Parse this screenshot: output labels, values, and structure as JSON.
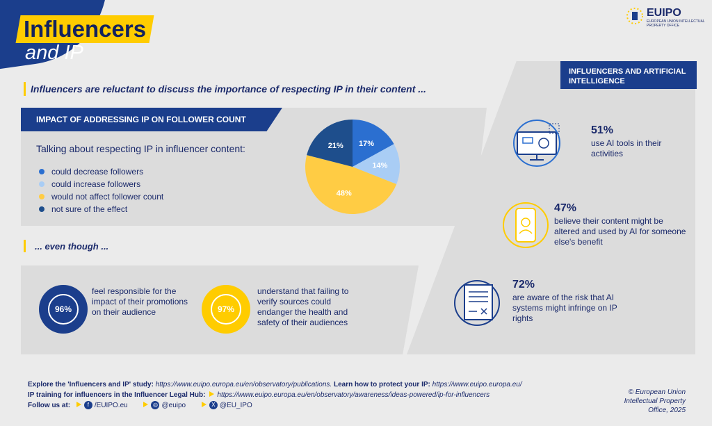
{
  "header": {
    "title": "Influencers",
    "subtitle": "and IP",
    "logo_text": "EUIPO",
    "logo_subtext": "European Union Intellectual Property Office"
  },
  "headline": "Influencers are reluctant to discuss the importance of respecting IP in their content ...",
  "impact": {
    "heading": "IMPACT OF ADDRESSING IP ON FOLLOWER COUNT",
    "question": "Talking about respecting IP in influencer content:",
    "legend": [
      {
        "label": "could decrease followers",
        "color": "#2b6fd0"
      },
      {
        "label": "could increase followers",
        "color": "#a9cdf5"
      },
      {
        "label": "would not affect follower count",
        "color": "#ffcc44"
      },
      {
        "label": "not sure of the effect",
        "color": "#1e4e8c"
      }
    ]
  },
  "chart_data": {
    "type": "pie",
    "categories": [
      "could decrease followers",
      "could increase followers",
      "would not affect follower count",
      "not sure of the effect"
    ],
    "values": [
      17,
      14,
      48,
      21
    ],
    "labels": [
      "17%",
      "14%",
      "48%",
      "21%"
    ],
    "colors": [
      "#2b6fd0",
      "#a9cdf5",
      "#ffcc44",
      "#1e4e8c"
    ],
    "title": "IMPACT OF ADDRESSING IP ON FOLLOWER COUNT"
  },
  "even_though": "... even though ...",
  "rings": [
    {
      "pct": "96%",
      "text": "feel responsible for the impact of their promotions on their audience"
    },
    {
      "pct": "97%",
      "text": "understand that failing to verify sources could endanger the health and safety of their audiences"
    }
  ],
  "ai": {
    "heading": "INFLUENCERS AND ARTIFICIAL INTELLIGENCE",
    "stats": [
      {
        "pct": "51%",
        "text": "use AI tools in their activities"
      },
      {
        "pct": "47%",
        "text": "believe their content might be altered and used by AI for someone else's benefit"
      },
      {
        "pct": "72%",
        "text": "are aware of the risk that AI systems might infringe on IP rights"
      }
    ]
  },
  "footer": {
    "study_label": "Explore the 'Influencers and IP' study:",
    "study_url": "https://www.euipo.europa.eu/en/observatory/publications.",
    "learn_label": "Learn how to protect your IP:",
    "learn_url": "https://www.euipo.europa.eu/",
    "training_label": "IP training for influencers in the Influencer Legal Hub:",
    "training_url": "https://www.euipo.europa.eu/en/observatory/awareness/ideas-powered/ip-for-influencers",
    "follow_label": "Follow us at:",
    "facebook": "/EUIPO.eu",
    "instagram": "@euipo",
    "x": "@EU_IPO",
    "copyright": "© European Union Intellectual Property Office, 2025"
  }
}
